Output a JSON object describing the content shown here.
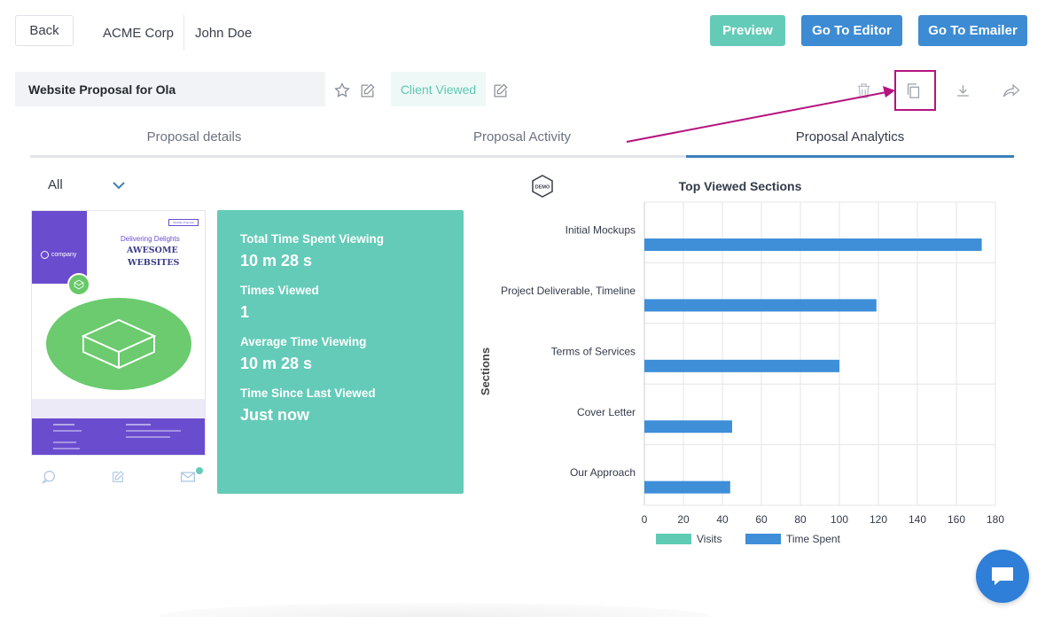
{
  "header": {
    "back_label": "Back",
    "company": "ACME Corp",
    "contact": "John Doe",
    "preview_label": "Preview",
    "editor_label": "Go To Editor",
    "emailer_label": "Go To Emailer"
  },
  "proposal": {
    "title": "Website Proposal for Ola",
    "status": "Client Viewed"
  },
  "tabs": [
    {
      "label": "Proposal details"
    },
    {
      "label": "Proposal Activity"
    },
    {
      "label": "Proposal Analytics"
    }
  ],
  "filter": {
    "selected": "All"
  },
  "thumbnail": {
    "tagline": "Delivering Delights",
    "headline1": "AWESOME",
    "headline2": "WEBSITES",
    "brand": "company",
    "tag_box": "Website Proposal"
  },
  "stats": [
    {
      "label": "Total Time Spent Viewing",
      "value": "10 m 28 s"
    },
    {
      "label": "Times Viewed",
      "value": "1"
    },
    {
      "label": "Average Time Viewing",
      "value": "10 m 28 s"
    },
    {
      "label": "Time Since Last Viewed",
      "value": "Just now"
    }
  ],
  "demo_badge": "DEMO",
  "colors": {
    "teal": "#64cbb8",
    "blue": "#3e8ed8",
    "button_blue": "#3d8bd3",
    "highlight": "#b5137e"
  },
  "chart_data": {
    "type": "bar",
    "orientation": "horizontal",
    "title": "Top Viewed Sections",
    "xlabel": "",
    "ylabel": "Sections",
    "xlim": [
      0,
      180
    ],
    "xticks": [
      0,
      20,
      40,
      60,
      80,
      100,
      120,
      140,
      160,
      180
    ],
    "categories": [
      "Initial Mockups",
      "Project Deliverable, Timeline",
      "Terms of Services",
      "Cover Letter",
      "Our Approach"
    ],
    "series": [
      {
        "name": "Visits",
        "color": "#5fcbb5",
        "values": [
          0,
          0,
          0,
          0,
          0
        ]
      },
      {
        "name": "Time Spent",
        "color": "#3e8ed8",
        "values": [
          173,
          119,
          100,
          45,
          44
        ]
      }
    ],
    "legend_position": "bottom"
  }
}
